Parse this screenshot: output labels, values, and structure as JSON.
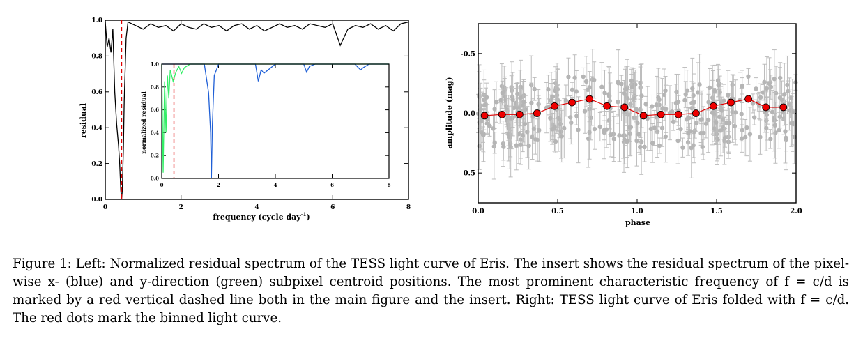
{
  "chart_data": [
    {
      "type": "line",
      "name": "left-main",
      "ylabel": "residual",
      "xlabel": "frequency (cycle day",
      "xlabel_sup": "-1",
      "xlabel_close": ")",
      "xlim": [
        0,
        8
      ],
      "ylim": [
        0,
        1.0
      ],
      "x_ticks": [
        "0",
        "2",
        "4",
        "6",
        "8"
      ],
      "y_ticks": [
        "0.0",
        "0.2",
        "0.4",
        "0.6",
        "0.8",
        "1.0"
      ],
      "marked_frequency": 0.43,
      "series": [
        {
          "color": "#000000",
          "x": [
            0,
            0.05,
            0.1,
            0.15,
            0.2,
            0.25,
            0.3,
            0.35,
            0.38,
            0.41,
            0.43,
            0.45,
            0.48,
            0.5,
            0.55,
            0.6,
            0.7,
            0.8,
            1.0,
            1.2,
            1.4,
            1.6,
            1.8,
            2.0,
            2.2,
            2.4,
            2.6,
            2.8,
            3.0,
            3.2,
            3.4,
            3.6,
            3.8,
            4.0,
            4.2,
            4.4,
            4.6,
            4.8,
            5.0,
            5.2,
            5.4,
            5.6,
            5.8,
            6.0,
            6.2,
            6.4,
            6.6,
            6.8,
            7.0,
            7.2,
            7.4,
            7.6,
            7.8,
            8.0
          ],
          "y": [
            0.99,
            0.85,
            0.9,
            0.82,
            0.95,
            0.6,
            0.42,
            0.3,
            0.2,
            0.05,
            0.0,
            0.05,
            0.3,
            0.55,
            0.9,
            0.99,
            0.98,
            0.97,
            0.95,
            0.98,
            0.96,
            0.97,
            0.94,
            0.98,
            0.96,
            0.95,
            0.98,
            0.96,
            0.97,
            0.94,
            0.97,
            0.98,
            0.95,
            0.97,
            0.94,
            0.96,
            0.98,
            0.96,
            0.97,
            0.95,
            0.98,
            0.97,
            0.96,
            0.98,
            0.86,
            0.95,
            0.97,
            0.96,
            0.98,
            0.95,
            0.97,
            0.94,
            0.98,
            0.99
          ]
        }
      ]
    },
    {
      "type": "line",
      "name": "left-insert",
      "ylabel": "normalized residual",
      "xlim": [
        0,
        8
      ],
      "ylim": [
        0,
        1.0
      ],
      "x_ticks": [
        "0",
        "2",
        "4",
        "6",
        "8"
      ],
      "y_ticks": [
        "0.0",
        "0.2",
        "0.4",
        "0.6",
        "0.8",
        "1.0"
      ],
      "marked_frequency": 0.43,
      "series": [
        {
          "color": "#1f5fd6",
          "x": [
            0,
            1.5,
            1.65,
            1.72,
            1.75,
            1.78,
            1.85,
            2.0,
            3.3,
            3.4,
            3.5,
            3.6,
            4.0,
            5.0,
            5.1,
            5.2,
            5.4,
            6.8,
            7.0,
            7.1,
            7.3,
            8.0
          ],
          "y": [
            1.0,
            1.0,
            0.75,
            0.4,
            0.0,
            0.45,
            0.9,
            1.0,
            1.0,
            0.85,
            0.95,
            0.92,
            1.0,
            1.0,
            0.93,
            0.98,
            1.0,
            1.0,
            0.95,
            0.97,
            1.0,
            1.0
          ]
        },
        {
          "color": "#33ee66",
          "x": [
            0,
            0.05,
            0.1,
            0.15,
            0.2,
            0.25,
            0.3,
            0.4,
            0.5,
            0.6,
            0.7,
            0.8,
            1.0,
            1.5,
            8.0
          ],
          "y": [
            1.0,
            0.05,
            0.85,
            0.4,
            0.9,
            0.7,
            0.95,
            0.85,
            0.93,
            0.98,
            0.92,
            0.97,
            1.0,
            1.0,
            1.0
          ]
        }
      ]
    },
    {
      "type": "scatter",
      "name": "right-folded",
      "xlabel": "phase",
      "ylabel": "amplitude (mag)",
      "xlim": [
        0,
        2.0
      ],
      "ylim": [
        0.75,
        -0.75
      ],
      "x_ticks": [
        "0.0",
        "0.5",
        "1.0",
        "1.5",
        "2.0"
      ],
      "y_ticks": [
        "-0.5",
        "0.0",
        "0.5"
      ],
      "series": [
        {
          "color": "#e00000",
          "x": [
            0.04,
            0.15,
            0.26,
            0.37,
            0.48,
            0.59,
            0.7,
            0.81,
            0.92,
            1.04,
            1.15,
            1.26,
            1.37,
            1.48,
            1.59,
            1.7,
            1.81,
            1.92
          ],
          "y": [
            0.02,
            0.01,
            0.01,
            0.0,
            -0.06,
            -0.09,
            -0.12,
            -0.06,
            -0.05,
            0.02,
            0.01,
            0.01,
            0.0,
            -0.06,
            -0.09,
            -0.12,
            -0.05,
            -0.05
          ]
        }
      ]
    }
  ],
  "caption": "Figure 1: Left: Normalized residual spectrum of the TESS light curve of Eris. The insert shows the residual spectrum of the pixel-wise x- (blue) and y-direction (green) subpixel centroid positions. The most prominent characteristic frequency of f = c/d is marked by a red vertical dashed line both in the main figure and the insert. Right: TESS light curve of Eris folded with f = c/d. The red dots mark the binned light curve."
}
